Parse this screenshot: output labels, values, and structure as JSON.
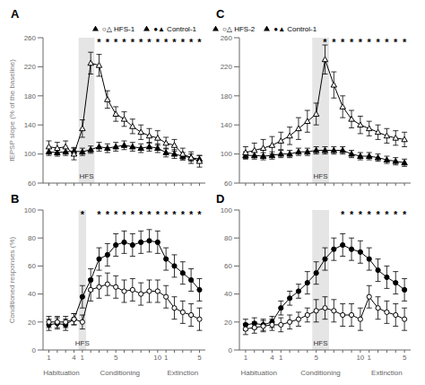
{
  "chart_data": [
    {
      "type": "line",
      "title": "A",
      "ylabel": "fEPSP slope (% of the baseline)",
      "categories": [
        null,
        null,
        null,
        null,
        null,
        null,
        null,
        null,
        null,
        null,
        null,
        null,
        null,
        null,
        null,
        null,
        null,
        null,
        null
      ],
      "series": [
        {
          "name": "●▲ Control-1",
          "color": "#000000",
          "marker": "filled_triangle",
          "values": [
            103,
            102,
            103,
            104,
            103,
            106,
            110,
            108,
            110,
            112,
            110,
            108,
            110,
            108,
            102,
            100,
            97,
            95,
            93
          ],
          "errors": [
            5,
            5,
            5,
            5,
            5,
            5,
            6,
            6,
            6,
            6,
            6,
            6,
            6,
            6,
            6,
            6,
            5,
            5,
            5
          ]
        },
        {
          "name": "○△ HFS-1",
          "color": "#000000",
          "marker": "open_triangle",
          "values": [
            110,
            108,
            110,
            100,
            135,
            225,
            222,
            175,
            155,
            148,
            138,
            130,
            125,
            122,
            115,
            112,
            100,
            95,
            90
          ],
          "errors": [
            8,
            8,
            8,
            8,
            12,
            15,
            15,
            12,
            10,
            10,
            10,
            10,
            10,
            10,
            8,
            8,
            8,
            8,
            8
          ]
        }
      ],
      "ylim": [
        60,
        260
      ],
      "yticks": [
        60,
        100,
        140,
        180,
        220,
        260
      ],
      "legend": "upper right",
      "highlight": {
        "start": 4,
        "end": 5,
        "label": "HFS"
      },
      "significance": [
        null,
        null,
        null,
        null,
        null,
        null,
        "*",
        "*",
        "*",
        "*",
        "*",
        "*",
        "*",
        "*",
        "*",
        "*",
        "*",
        "*",
        "*"
      ]
    },
    {
      "type": "line",
      "title": "C",
      "categories": [
        null,
        null,
        null,
        null,
        null,
        null,
        null,
        null,
        null,
        null,
        null,
        null,
        null,
        null,
        null,
        null,
        null,
        null,
        null
      ],
      "series": [
        {
          "name": "●▲ Control-1",
          "color": "#000000",
          "marker": "filled_triangle",
          "values": [
            98,
            98,
            97,
            98,
            100,
            100,
            103,
            103,
            105,
            105,
            105,
            105,
            100,
            97,
            97,
            95,
            92,
            90,
            88
          ],
          "errors": [
            5,
            5,
            5,
            5,
            5,
            5,
            5,
            5,
            5,
            5,
            5,
            5,
            5,
            5,
            5,
            5,
            5,
            5,
            5
          ]
        },
        {
          "name": "○△ HFS-2",
          "color": "#000000",
          "marker": "open_triangle",
          "values": [
            102,
            105,
            108,
            112,
            118,
            125,
            135,
            145,
            155,
            230,
            195,
            165,
            148,
            140,
            135,
            130,
            125,
            122,
            120
          ],
          "errors": [
            8,
            10,
            12,
            12,
            12,
            12,
            15,
            15,
            15,
            20,
            18,
            15,
            12,
            12,
            10,
            10,
            10,
            10,
            10
          ]
        }
      ],
      "ylim": [
        60,
        260
      ],
      "yticks": [
        60,
        100,
        140,
        180,
        220,
        260
      ],
      "legend": "upper left",
      "highlight": {
        "start": 8,
        "end": 9,
        "label": "HFS"
      },
      "significance": [
        null,
        null,
        null,
        null,
        null,
        null,
        null,
        null,
        null,
        "*",
        "*",
        "*",
        "*",
        "*",
        "*",
        "*",
        "*",
        "*",
        "*"
      ]
    },
    {
      "type": "line",
      "title": "B",
      "ylabel": "Conditioned responses (%)",
      "categories": [
        "1",
        null,
        null,
        "4",
        "1",
        null,
        null,
        null,
        "5",
        null,
        null,
        null,
        null,
        "10",
        "1",
        null,
        null,
        null,
        "5"
      ],
      "sections": [
        "Habituation",
        "Habituation",
        "Habituation",
        "Habituation",
        "Conditioning",
        "Conditioning",
        "Conditioning",
        "Conditioning",
        "Conditioning",
        "Conditioning",
        "Conditioning",
        "Conditioning",
        "Conditioning",
        "Conditioning",
        "Extinction",
        "Extinction",
        "Extinction",
        "Extinction",
        "Extinction"
      ],
      "series": [
        {
          "color": "#000000",
          "marker": "filled_circle",
          "values": [
            18,
            19,
            18,
            22,
            38,
            50,
            65,
            68,
            75,
            77,
            75,
            77,
            78,
            77,
            65,
            60,
            55,
            50,
            43
          ],
          "errors": [
            4,
            4,
            4,
            4,
            8,
            8,
            8,
            8,
            8,
            8,
            8,
            8,
            8,
            8,
            8,
            8,
            8,
            8,
            8
          ]
        },
        {
          "color": "#000000",
          "marker": "open_circle",
          "values": [
            20,
            20,
            20,
            22,
            20,
            43,
            45,
            47,
            45,
            42,
            43,
            40,
            42,
            42,
            38,
            30,
            27,
            25,
            22
          ],
          "errors": [
            4,
            4,
            4,
            4,
            5,
            8,
            8,
            8,
            8,
            8,
            8,
            8,
            8,
            8,
            8,
            8,
            8,
            8,
            8
          ]
        }
      ],
      "ylim": [
        0,
        100
      ],
      "yticks": [
        0,
        20,
        40,
        60,
        80,
        100
      ],
      "highlight": {
        "start": 4,
        "end": 4,
        "label": "HFS"
      },
      "significance": [
        null,
        null,
        null,
        null,
        "*",
        null,
        "*",
        "*",
        "*",
        "*",
        "*",
        "*",
        "*",
        "*",
        "*",
        "*",
        "*",
        "*",
        "*"
      ]
    },
    {
      "type": "line",
      "title": "D",
      "categories": [
        "1",
        null,
        null,
        "4",
        "1",
        null,
        null,
        null,
        "5",
        null,
        null,
        null,
        null,
        "10",
        "1",
        null,
        null,
        null,
        "5"
      ],
      "sections": [
        "Habituation",
        "Habituation",
        "Habituation",
        "Habituation",
        "Conditioning",
        "Conditioning",
        "Conditioning",
        "Conditioning",
        "Conditioning",
        "Conditioning",
        "Conditioning",
        "Conditioning",
        "Conditioning",
        "Conditioning",
        "Extinction",
        "Extinction",
        "Extinction",
        "Extinction",
        "Extinction"
      ],
      "series": [
        {
          "color": "#000000",
          "marker": "filled_circle",
          "values": [
            18,
            19,
            18,
            20,
            30,
            37,
            42,
            48,
            55,
            65,
            72,
            75,
            72,
            70,
            65,
            57,
            52,
            48,
            43
          ],
          "errors": [
            4,
            4,
            4,
            4,
            5,
            5,
            5,
            8,
            8,
            8,
            8,
            8,
            8,
            8,
            8,
            8,
            8,
            8,
            8
          ]
        },
        {
          "color": "#000000",
          "marker": "open_circle",
          "values": [
            15,
            16,
            17,
            18,
            18,
            20,
            22,
            25,
            28,
            30,
            28,
            25,
            25,
            22,
            38,
            30,
            27,
            25,
            22
          ],
          "errors": [
            4,
            4,
            4,
            4,
            5,
            5,
            5,
            5,
            8,
            8,
            8,
            8,
            8,
            8,
            8,
            8,
            8,
            8,
            8
          ]
        }
      ],
      "ylim": [
        0,
        100
      ],
      "yticks": [
        0,
        20,
        40,
        60,
        80,
        100
      ],
      "highlight": {
        "start": 8,
        "end": 9,
        "label": "HFS"
      },
      "significance": [
        null,
        null,
        null,
        null,
        null,
        null,
        null,
        null,
        null,
        null,
        null,
        "*",
        "*",
        "*",
        "*",
        "*",
        "*",
        "*",
        "*"
      ]
    }
  ]
}
